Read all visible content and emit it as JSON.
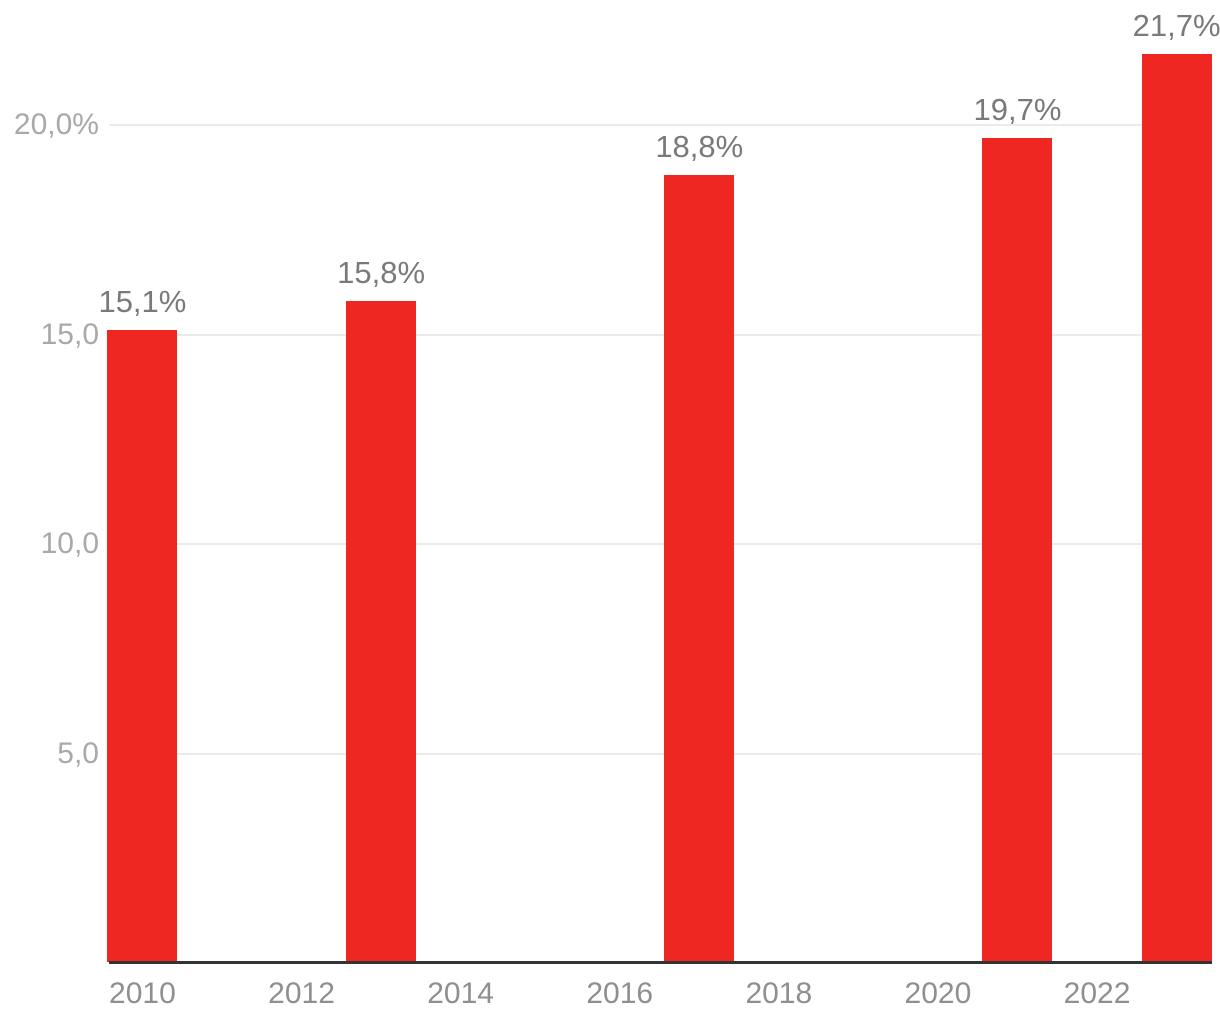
{
  "chart_data": {
    "type": "bar",
    "x": [
      2010,
      2013,
      2017,
      2021,
      2023
    ],
    "values": [
      15.1,
      15.8,
      18.8,
      19.7,
      21.7
    ],
    "bar_labels": [
      "15,1%",
      "15,8%",
      "18,8%",
      "19,7%",
      "21,7%"
    ],
    "x_ticks": [
      {
        "year": 2010,
        "label": "2010"
      },
      {
        "year": 2012,
        "label": "2012"
      },
      {
        "year": 2014,
        "label": "2014"
      },
      {
        "year": 2016,
        "label": "2016"
      },
      {
        "year": 2018,
        "label": "2018"
      },
      {
        "year": 2020,
        "label": "2020"
      },
      {
        "year": 2022,
        "label": "2022"
      }
    ],
    "y_ticks": [
      {
        "value": 5,
        "label": "5,0"
      },
      {
        "value": 10,
        "label": "10,0"
      },
      {
        "value": 15,
        "label": "15,0"
      },
      {
        "value": 20,
        "label": "20,0%"
      }
    ],
    "xlim": [
      2009.58,
      2023.42
    ],
    "ylim": [
      0,
      22
    ],
    "grid": true,
    "legend": false,
    "title": "",
    "xlabel": "",
    "ylabel": "",
    "colors": {
      "bar": "#ee2723",
      "gridline": "#ebebeb",
      "axis_line": "#333333",
      "x_tick_label": "#8f8f8f",
      "y_tick_label": "#a9a9a9",
      "bar_value_label": "#7a7a7a",
      "background": "#ffffff"
    }
  }
}
